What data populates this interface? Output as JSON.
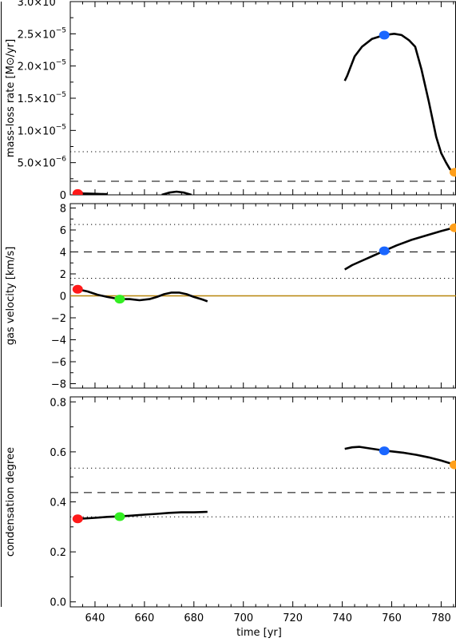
{
  "chart_data": {
    "type": "line",
    "shared_x": {
      "label": "time [yr]",
      "range": [
        630,
        786
      ],
      "ticks": [
        640,
        660,
        680,
        700,
        720,
        740,
        760,
        780
      ],
      "tick_labels": [
        "640",
        "660",
        "680",
        "700",
        "720",
        "740",
        "760",
        "780"
      ]
    },
    "panels": [
      {
        "ylabel": "mass-loss rate [M⊙/yr]",
        "ylim": [
          0,
          3e-05
        ],
        "yticks": [
          0,
          5e-06,
          1e-05,
          1.5e-05,
          2e-05,
          2.5e-05,
          3e-05
        ],
        "ytick_labels": [
          {
            "mantissa": "0",
            "exponent": ""
          },
          {
            "mantissa": "5.0×10",
            "exponent": "−6"
          },
          {
            "mantissa": "1.0×10",
            "exponent": "−5"
          },
          {
            "mantissa": "1.5×10",
            "exponent": "−5"
          },
          {
            "mantissa": "2.0×10",
            "exponent": "−5"
          },
          {
            "mantissa": "2.5×10",
            "exponent": "−5"
          },
          {
            "mantissa": "3.0×10",
            "exponent": "−5"
          }
        ],
        "series": [
          {
            "segments": [
              [
                [
                  633,
                  2.2e-07
                ],
                [
                  637,
                  2e-07
                ],
                [
                  641,
                  1.5e-07
                ],
                [
                  645,
                  1e-07
                ]
              ],
              [
                [
                  667,
                  0
                ],
                [
                  670,
                  3.5e-07
                ],
                [
                  673,
                  5e-07
                ],
                [
                  676,
                  3.5e-07
                ],
                [
                  679,
                  0
                ]
              ],
              [
                [
                  741,
                  1.77e-05
                ],
                [
                  742,
                  1.85e-05
                ],
                [
                  743,
                  1.95e-05
                ],
                [
                  745,
                  2.15e-05
                ],
                [
                  748,
                  2.3e-05
                ],
                [
                  752,
                  2.42e-05
                ],
                [
                  757,
                  2.48e-05
                ],
                [
                  761,
                  2.5e-05
                ],
                [
                  764,
                  2.48e-05
                ],
                [
                  767,
                  2.4e-05
                ],
                [
                  769.5,
                  2.3e-05
                ],
                [
                  772,
                  1.95e-05
                ],
                [
                  775,
                  1.45e-05
                ],
                [
                  778,
                  9e-06
                ],
                [
                  780,
                  6.5e-06
                ],
                [
                  782,
                  5e-06
                ],
                [
                  783.5,
                  4e-06
                ],
                [
                  785,
                  3.5e-06
                ]
              ]
            ]
          }
        ],
        "hlines": [
          {
            "y": 6.7e-06,
            "style": "dotted"
          },
          {
            "y": 2.1e-06,
            "style": "dashed"
          }
        ],
        "markers": [
          {
            "x": 633,
            "y": 2e-07,
            "color": "#ff1a1a"
          },
          {
            "x": 757,
            "y": 2.48e-05,
            "color": "#1a66ff"
          },
          {
            "x": 785.5,
            "y": 3.5e-06,
            "color": "#ff9f1a"
          }
        ]
      },
      {
        "ylabel": "gas velocity [km/s]",
        "ylim": [
          -8.4,
          8.4
        ],
        "yticks": [
          -8,
          -6,
          -4,
          -2,
          0,
          2,
          4,
          6,
          8
        ],
        "ytick_labels": [
          {
            "mantissa": "−8",
            "exponent": ""
          },
          {
            "mantissa": "−6",
            "exponent": ""
          },
          {
            "mantissa": "−4",
            "exponent": ""
          },
          {
            "mantissa": "−2",
            "exponent": ""
          },
          {
            "mantissa": "0",
            "exponent": ""
          },
          {
            "mantissa": "2",
            "exponent": ""
          },
          {
            "mantissa": "4",
            "exponent": ""
          },
          {
            "mantissa": "6",
            "exponent": ""
          },
          {
            "mantissa": "8",
            "exponent": ""
          }
        ],
        "series": [
          {
            "segments": [
              [
                [
                  633,
                  0.6
                ],
                [
                  637,
                  0.4
                ],
                [
                  641,
                  0.1
                ],
                [
                  645,
                  -0.1
                ],
                [
                  650,
                  -0.3
                ],
                [
                  654,
                  -0.3
                ],
                [
                  658,
                  -0.4
                ],
                [
                  662,
                  -0.3
                ],
                [
                  665,
                  -0.1
                ],
                [
                  668,
                  0.15
                ],
                [
                  671,
                  0.3
                ],
                [
                  674,
                  0.3
                ],
                [
                  677,
                  0.15
                ],
                [
                  680,
                  -0.1
                ],
                [
                  683,
                  -0.3
                ],
                [
                  685.5,
                  -0.5
                ]
              ],
              [
                [
                  741,
                  2.4
                ],
                [
                  744,
                  2.8
                ],
                [
                  748,
                  3.2
                ],
                [
                  752,
                  3.6
                ],
                [
                  757,
                  4.1
                ],
                [
                  762,
                  4.6
                ],
                [
                  768,
                  5.1
                ],
                [
                  774,
                  5.5
                ],
                [
                  780,
                  5.9
                ],
                [
                  785,
                  6.2
                ]
              ]
            ]
          }
        ],
        "hlines": [
          {
            "y": 6.5,
            "style": "dotted"
          },
          {
            "y": 4.0,
            "style": "dashed"
          },
          {
            "y": 1.6,
            "style": "dotted"
          },
          {
            "y": 0,
            "style": "solid",
            "color": "#b8860b"
          }
        ],
        "markers": [
          {
            "x": 633,
            "y": 0.6,
            "color": "#ff1a1a"
          },
          {
            "x": 650,
            "y": -0.3,
            "color": "#33ee22"
          },
          {
            "x": 757,
            "y": 4.1,
            "color": "#1a66ff"
          },
          {
            "x": 785.5,
            "y": 6.2,
            "color": "#ff9f1a"
          }
        ]
      },
      {
        "ylabel": "condensation degree",
        "ylim": [
          -0.02,
          0.82
        ],
        "yticks": [
          0.0,
          0.2,
          0.4,
          0.6,
          0.8
        ],
        "ytick_labels": [
          {
            "mantissa": "0.0",
            "exponent": ""
          },
          {
            "mantissa": "0.2",
            "exponent": ""
          },
          {
            "mantissa": "0.4",
            "exponent": ""
          },
          {
            "mantissa": "0.6",
            "exponent": ""
          },
          {
            "mantissa": "0.8",
            "exponent": ""
          }
        ],
        "series": [
          {
            "segments": [
              [
                [
                  633,
                  0.332
                ],
                [
                  640,
                  0.336
                ],
                [
                  645,
                  0.34
                ],
                [
                  650,
                  0.342
                ],
                [
                  655,
                  0.345
                ],
                [
                  660,
                  0.349
                ],
                [
                  665,
                  0.352
                ],
                [
                  670,
                  0.356
                ],
                [
                  675,
                  0.358
                ],
                [
                  680,
                  0.358
                ],
                [
                  685.5,
                  0.36
                ]
              ],
              [
                [
                  741,
                  0.612
                ],
                [
                  744,
                  0.618
                ],
                [
                  747,
                  0.62
                ],
                [
                  751,
                  0.614
                ],
                [
                  755,
                  0.608
                ],
                [
                  759,
                  0.603
                ],
                [
                  765,
                  0.596
                ],
                [
                  770,
                  0.588
                ],
                [
                  775,
                  0.578
                ],
                [
                  780,
                  0.565
                ],
                [
                  785,
                  0.55
                ]
              ]
            ]
          }
        ],
        "hlines": [
          {
            "y": 0.535,
            "style": "dotted"
          },
          {
            "y": 0.437,
            "style": "dashed"
          },
          {
            "y": 0.34,
            "style": "dotted"
          }
        ],
        "markers": [
          {
            "x": 633,
            "y": 0.332,
            "color": "#ff1a1a"
          },
          {
            "x": 650,
            "y": 0.341,
            "color": "#33ee22"
          },
          {
            "x": 757,
            "y": 0.604,
            "color": "#1a66ff"
          },
          {
            "x": 785.5,
            "y": 0.548,
            "color": "#ff9f1a"
          }
        ]
      }
    ]
  }
}
